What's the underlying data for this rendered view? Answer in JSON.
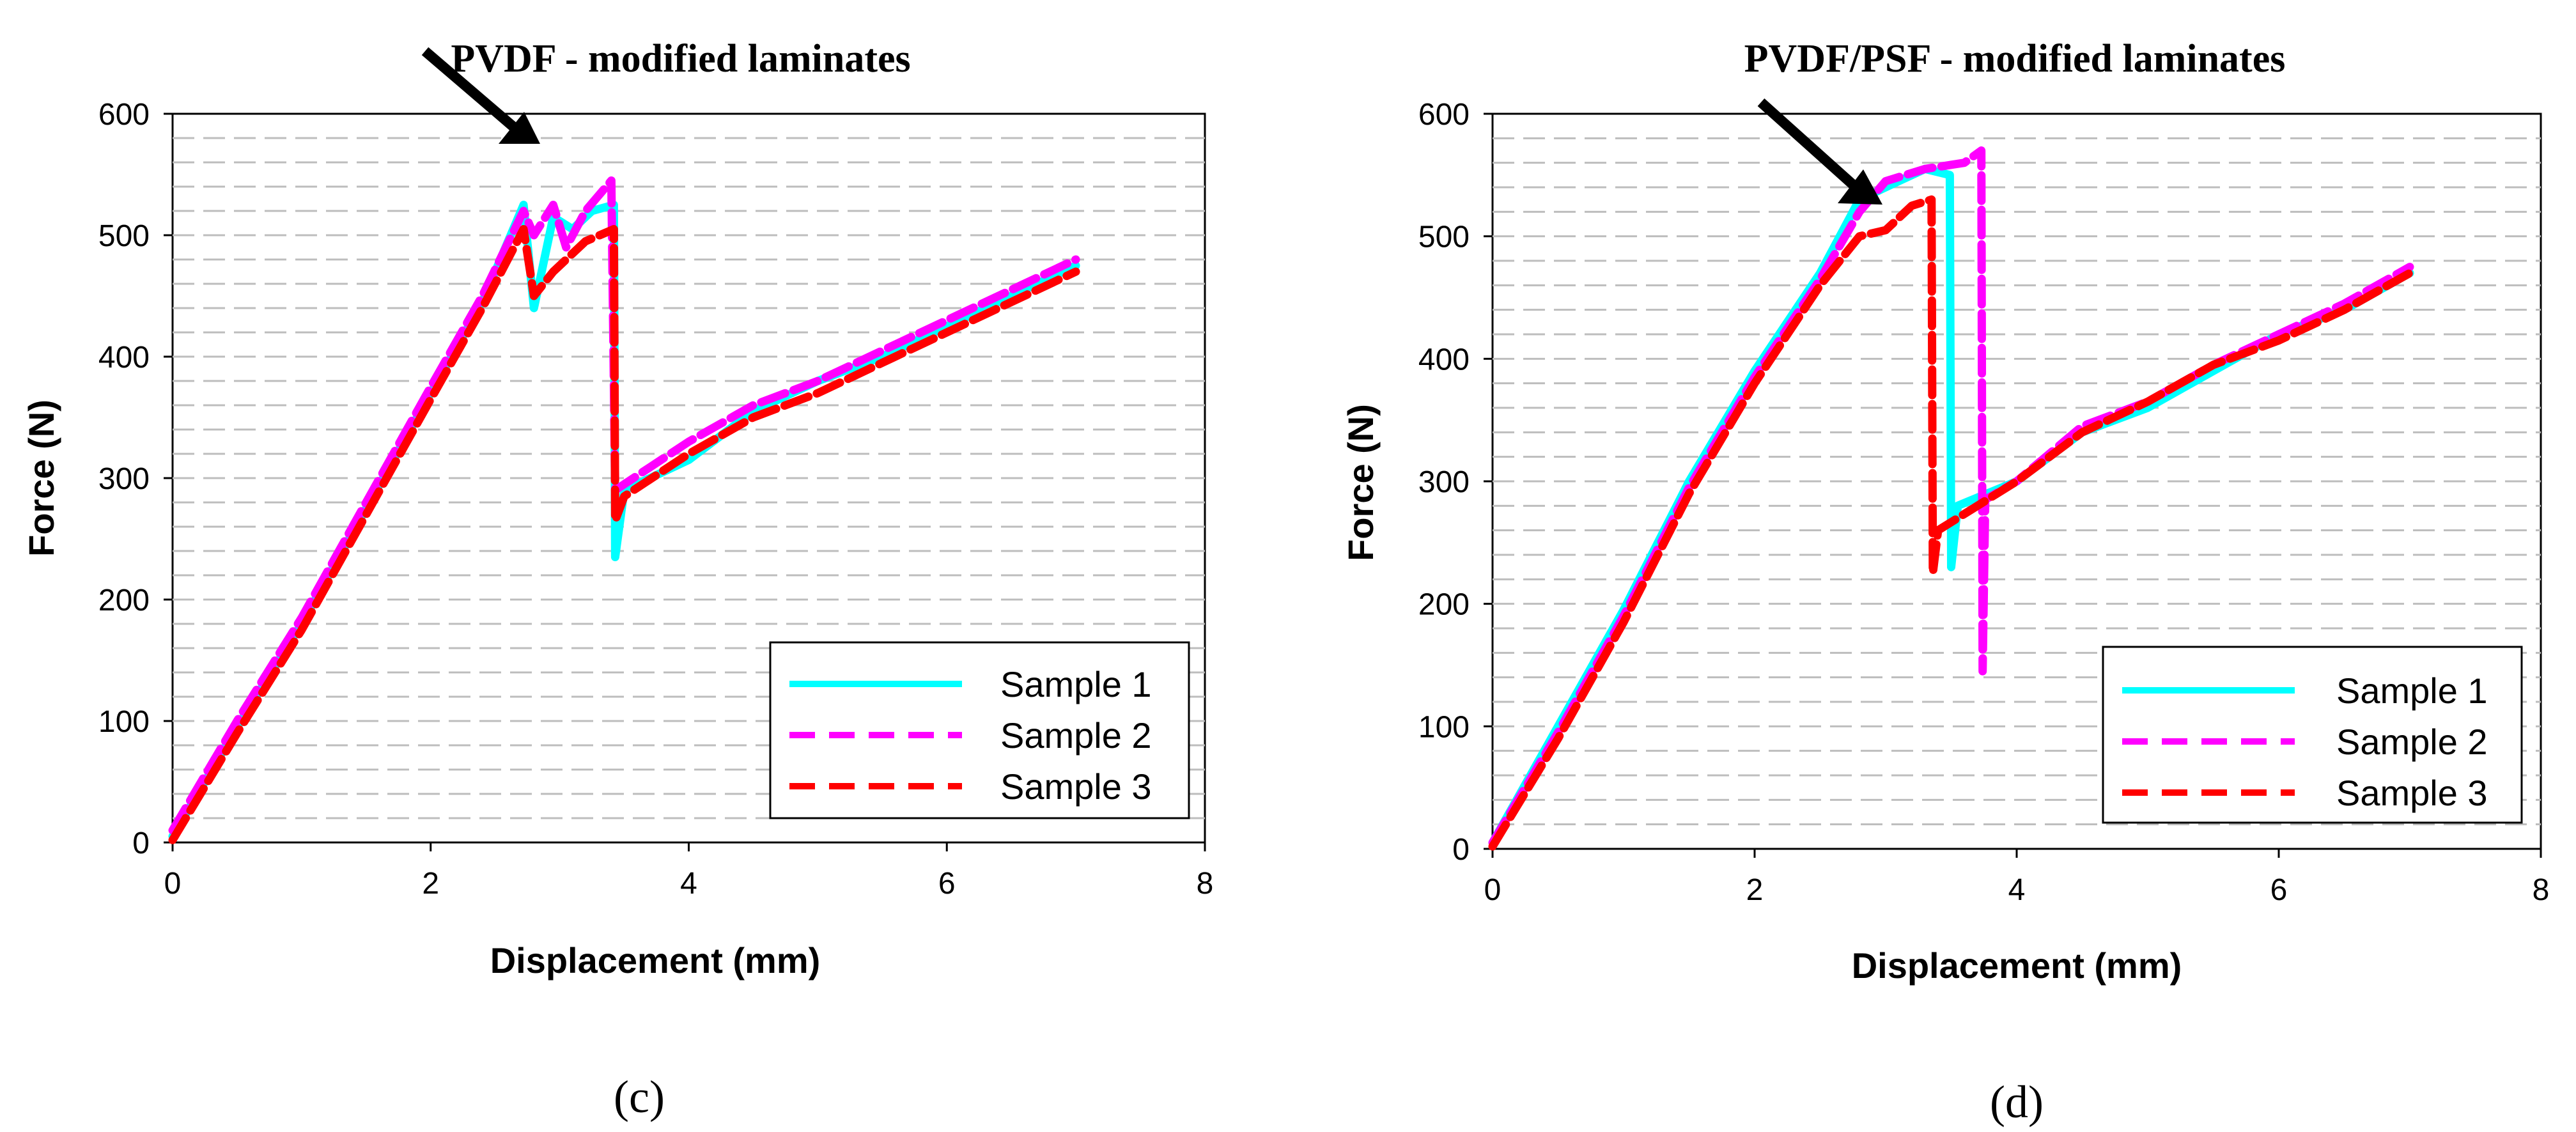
{
  "chart_data": [
    {
      "id": "c",
      "type": "line",
      "title": "PVDF - modified laminates",
      "caption": "(c)",
      "xlabel": "Displacement (mm)",
      "ylabel": "Force (N)",
      "xlim": [
        0,
        8
      ],
      "ylim": [
        0,
        600
      ],
      "xticks": [
        "0",
        "2",
        "4",
        "6",
        "8"
      ],
      "yticks": [
        "0",
        "100",
        "200",
        "300",
        "400",
        "500",
        "600"
      ],
      "grid": "horizontal dashed every 20 N",
      "legend_position": "bottom-right",
      "annotation": "arrow pointing to first load drop",
      "series": [
        {
          "name": "Sample 1",
          "color": "#00FFFF",
          "style": "solid",
          "points": [
            [
              0,
              5
            ],
            [
              0.5,
              95
            ],
            [
              1,
              180
            ],
            [
              1.5,
              275
            ],
            [
              2,
              370
            ],
            [
              2.4,
              445
            ],
            [
              2.72,
              525
            ],
            [
              2.8,
              440
            ],
            [
              2.86,
              470
            ],
            [
              2.95,
              515
            ],
            [
              3.1,
              505
            ],
            [
              3.25,
              520
            ],
            [
              3.42,
              525
            ],
            [
              3.43,
              235
            ],
            [
              3.5,
              290
            ],
            [
              4,
              315
            ],
            [
              4.5,
              355
            ],
            [
              5,
              380
            ],
            [
              5.5,
              400
            ],
            [
              6,
              425
            ],
            [
              6.5,
              450
            ],
            [
              7,
              475
            ]
          ]
        },
        {
          "name": "Sample 2",
          "color": "#FF00FF",
          "style": "dashed",
          "points": [
            [
              0,
              10
            ],
            [
              0.5,
              100
            ],
            [
              1,
              185
            ],
            [
              1.5,
              280
            ],
            [
              2,
              375
            ],
            [
              2.4,
              450
            ],
            [
              2.72,
              520
            ],
            [
              2.8,
              500
            ],
            [
              2.95,
              525
            ],
            [
              3.05,
              490
            ],
            [
              3.2,
              520
            ],
            [
              3.4,
              545
            ],
            [
              3.43,
              290
            ],
            [
              3.5,
              295
            ],
            [
              4,
              330
            ],
            [
              4.5,
              360
            ],
            [
              5,
              380
            ],
            [
              5.5,
              405
            ],
            [
              6,
              430
            ],
            [
              6.5,
              455
            ],
            [
              7,
              480
            ]
          ]
        },
        {
          "name": "Sample 3",
          "color": "#FF0000",
          "style": "dashed",
          "points": [
            [
              0,
              2
            ],
            [
              0.5,
              90
            ],
            [
              1,
              175
            ],
            [
              1.5,
              270
            ],
            [
              2,
              365
            ],
            [
              2.4,
              440
            ],
            [
              2.72,
              505
            ],
            [
              2.8,
              450
            ],
            [
              2.95,
              470
            ],
            [
              3.2,
              495
            ],
            [
              3.42,
              505
            ],
            [
              3.43,
              265
            ],
            [
              3.5,
              285
            ],
            [
              4,
              320
            ],
            [
              4.5,
              350
            ],
            [
              5,
              370
            ],
            [
              5.5,
              395
            ],
            [
              6,
              420
            ],
            [
              6.5,
              445
            ],
            [
              7,
              470
            ]
          ]
        }
      ]
    },
    {
      "id": "d",
      "type": "line",
      "title": "PVDF/PSF - modified laminates",
      "caption": "(d)",
      "xlabel": "Displacement (mm)",
      "ylabel": "Force (N)",
      "xlim": [
        0,
        8
      ],
      "ylim": [
        0,
        600
      ],
      "xticks": [
        "0",
        "2",
        "4",
        "6",
        "8"
      ],
      "yticks": [
        "0",
        "100",
        "200",
        "300",
        "400",
        "500",
        "600"
      ],
      "grid": "horizontal dashed every 20 N",
      "legend_position": "bottom-right",
      "annotation": "arrow pointing to onset of load plateau",
      "series": [
        {
          "name": "Sample 1",
          "color": "#00FFFF",
          "style": "solid",
          "points": [
            [
              0,
              5
            ],
            [
              0.5,
              100
            ],
            [
              1,
              195
            ],
            [
              1.5,
              300
            ],
            [
              2,
              390
            ],
            [
              2.5,
              470
            ],
            [
              2.8,
              530
            ],
            [
              3.1,
              545
            ],
            [
              3.3,
              555
            ],
            [
              3.49,
              550
            ],
            [
              3.5,
              230
            ],
            [
              3.55,
              280
            ],
            [
              4,
              300
            ],
            [
              4.5,
              340
            ],
            [
              5,
              360
            ],
            [
              5.5,
              390
            ],
            [
              6,
              420
            ],
            [
              6.5,
              440
            ],
            [
              7,
              470
            ]
          ]
        },
        {
          "name": "Sample 2",
          "color": "#FF00FF",
          "style": "dashed",
          "points": [
            [
              0,
              5
            ],
            [
              0.5,
              95
            ],
            [
              1,
              190
            ],
            [
              1.5,
              295
            ],
            [
              2,
              385
            ],
            [
              2.5,
              465
            ],
            [
              2.8,
              520
            ],
            [
              3,
              545
            ],
            [
              3.3,
              555
            ],
            [
              3.6,
              560
            ],
            [
              3.73,
              570
            ],
            [
              3.74,
              145
            ],
            [
              3.76,
              285
            ],
            [
              4,
              300
            ],
            [
              4.5,
              345
            ],
            [
              5,
              365
            ],
            [
              5.5,
              395
            ],
            [
              6,
              420
            ],
            [
              6.5,
              445
            ],
            [
              7,
              475
            ]
          ]
        },
        {
          "name": "Sample 3",
          "color": "#FF0000",
          "style": "dashed",
          "points": [
            [
              0,
              2
            ],
            [
              0.5,
              90
            ],
            [
              1,
              185
            ],
            [
              1.5,
              290
            ],
            [
              2,
              380
            ],
            [
              2.5,
              460
            ],
            [
              2.8,
              500
            ],
            [
              3,
              505
            ],
            [
              3.2,
              525
            ],
            [
              3.35,
              530
            ],
            [
              3.36,
              225
            ],
            [
              3.4,
              260
            ],
            [
              4,
              300
            ],
            [
              4.5,
              340
            ],
            [
              5,
              365
            ],
            [
              5.5,
              395
            ],
            [
              6,
              415
            ],
            [
              6.5,
              440
            ],
            [
              7,
              470
            ]
          ]
        }
      ]
    }
  ]
}
